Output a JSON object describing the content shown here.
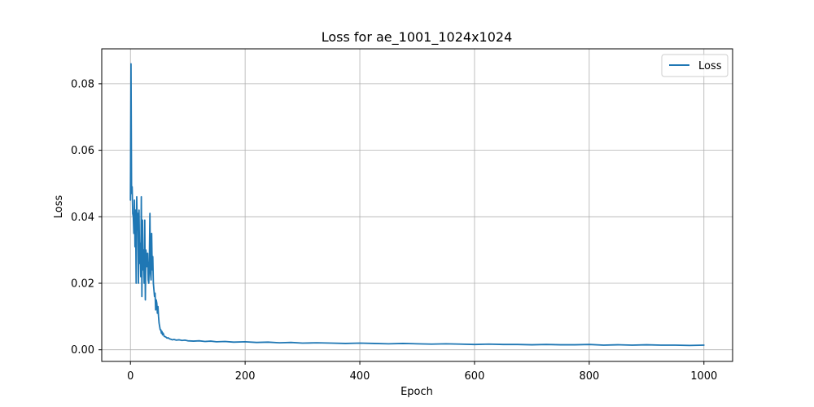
{
  "chart_data": {
    "type": "line",
    "title": "Loss for ae_1001_1024x1024",
    "xlabel": "Epoch",
    "ylabel": "Loss",
    "xlim": [
      -50,
      1050
    ],
    "ylim": [
      -0.0035,
      0.0905
    ],
    "xticks": [
      0,
      200,
      400,
      600,
      800,
      1000
    ],
    "yticks": [
      0.0,
      0.02,
      0.04,
      0.06,
      0.08
    ],
    "xtick_labels": [
      "0",
      "200",
      "400",
      "600",
      "800",
      "1000"
    ],
    "ytick_labels": [
      "0.00",
      "0.02",
      "0.04",
      "0.06",
      "0.08"
    ],
    "grid": true,
    "legend_position": "top-right",
    "series": [
      {
        "name": "Loss",
        "color": "#1f77b4",
        "x": [
          0,
          1,
          2,
          3,
          4,
          5,
          6,
          7,
          8,
          9,
          10,
          11,
          12,
          13,
          14,
          15,
          16,
          17,
          18,
          19,
          20,
          21,
          22,
          23,
          24,
          25,
          26,
          27,
          28,
          29,
          30,
          31,
          32,
          33,
          34,
          35,
          36,
          37,
          38,
          39,
          40,
          41,
          42,
          43,
          44,
          45,
          46,
          47,
          48,
          49,
          50,
          51,
          52,
          53,
          54,
          55,
          56,
          57,
          58,
          59,
          60,
          62,
          64,
          66,
          68,
          70,
          73,
          76,
          80,
          85,
          90,
          95,
          100,
          110,
          120,
          130,
          140,
          150,
          165,
          180,
          200,
          220,
          240,
          260,
          280,
          300,
          325,
          350,
          375,
          400,
          425,
          450,
          475,
          500,
          525,
          550,
          575,
          600,
          625,
          650,
          675,
          700,
          725,
          750,
          775,
          800,
          825,
          850,
          875,
          900,
          925,
          950,
          975,
          1000
        ],
        "values": [
          0.045,
          0.086,
          0.047,
          0.049,
          0.041,
          0.04,
          0.035,
          0.045,
          0.031,
          0.042,
          0.02,
          0.046,
          0.036,
          0.041,
          0.02,
          0.042,
          0.026,
          0.032,
          0.022,
          0.046,
          0.016,
          0.039,
          0.024,
          0.03,
          0.02,
          0.039,
          0.015,
          0.03,
          0.028,
          0.025,
          0.029,
          0.021,
          0.02,
          0.027,
          0.041,
          0.023,
          0.021,
          0.035,
          0.024,
          0.028,
          0.02,
          0.018,
          0.016,
          0.017,
          0.012,
          0.015,
          0.014,
          0.011,
          0.013,
          0.01,
          0.008,
          0.007,
          0.006,
          0.006,
          0.005,
          0.0055,
          0.0045,
          0.005,
          0.0045,
          0.004,
          0.004,
          0.0038,
          0.0035,
          0.0036,
          0.0033,
          0.0032,
          0.003,
          0.0031,
          0.0029,
          0.003,
          0.0028,
          0.0029,
          0.0027,
          0.0026,
          0.0027,
          0.0025,
          0.0026,
          0.0024,
          0.0025,
          0.0023,
          0.0024,
          0.0022,
          0.0023,
          0.0021,
          0.0022,
          0.002,
          0.0021,
          0.002,
          0.0019,
          0.002,
          0.0019,
          0.0018,
          0.0019,
          0.0018,
          0.0017,
          0.0018,
          0.0017,
          0.0016,
          0.0017,
          0.0016,
          0.0016,
          0.0015,
          0.0016,
          0.0015,
          0.0015,
          0.0016,
          0.0014,
          0.0015,
          0.0014,
          0.0015,
          0.0014,
          0.0014,
          0.0013,
          0.0014
        ]
      }
    ]
  }
}
